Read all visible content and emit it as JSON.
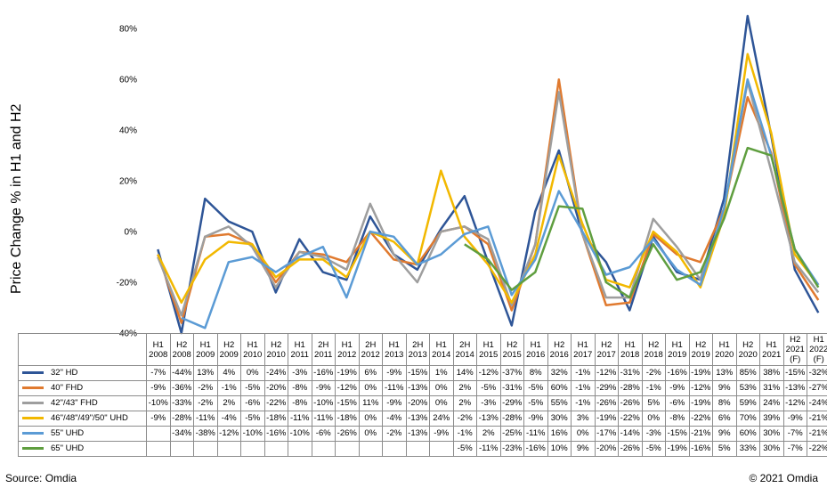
{
  "chart_data": {
    "type": "line",
    "ylabel": "Price Change % in H1 and H2",
    "ylim": [
      -40,
      85
    ],
    "yticks": [
      -40,
      -20,
      0,
      20,
      40,
      60,
      80
    ],
    "ytick_labels": [
      "-40%",
      "-20%",
      "0%",
      "20%",
      "40%",
      "60%",
      "80%"
    ],
    "categories": [
      [
        "H1",
        "2008"
      ],
      [
        "H2",
        "2008"
      ],
      [
        "H1",
        "2009"
      ],
      [
        "H2",
        "2009"
      ],
      [
        "H1",
        "2010"
      ],
      [
        "H2",
        "2010"
      ],
      [
        "H1",
        "2011"
      ],
      [
        "2H",
        "2011"
      ],
      [
        "H1",
        "2012"
      ],
      [
        "2H",
        "2012"
      ],
      [
        "H1",
        "2013"
      ],
      [
        "2H",
        "2013"
      ],
      [
        "H1",
        "2014"
      ],
      [
        "2H",
        "2014"
      ],
      [
        "H1",
        "2015"
      ],
      [
        "H2",
        "2015"
      ],
      [
        "H1",
        "2016"
      ],
      [
        "H2",
        "2016"
      ],
      [
        "H1",
        "2017"
      ],
      [
        "H2",
        "2017"
      ],
      [
        "H1",
        "2018"
      ],
      [
        "H2",
        "2018"
      ],
      [
        "H1",
        "2019"
      ],
      [
        "H2",
        "2019"
      ],
      [
        "H1",
        "2020"
      ],
      [
        "H2",
        "2020"
      ],
      [
        "H1",
        "2021"
      ],
      [
        "H2",
        "2021",
        "(F)"
      ],
      [
        "H1",
        "2022",
        "(F)"
      ]
    ],
    "series": [
      {
        "name": "32\" HD",
        "color": "#2e5597",
        "values": [
          -7,
          -44,
          13,
          4,
          0,
          -24,
          -3,
          -16,
          -19,
          6,
          -9,
          -15,
          1,
          14,
          -12,
          -37,
          8,
          32,
          -1,
          -12,
          -31,
          -2,
          -16,
          -19,
          13,
          85,
          38,
          -15,
          -32
        ],
        "labels": [
          "-7%",
          "-44%",
          "13%",
          "4%",
          "0%",
          "-24%",
          "-3%",
          "-16%",
          "-19%",
          "6%",
          "-9%",
          "-15%",
          "1%",
          "14%",
          "-12%",
          "-37%",
          "8%",
          "32%",
          "-1%",
          "-12%",
          "-31%",
          "-2%",
          "-16%",
          "-19%",
          "13%",
          "85%",
          "38%",
          "-15%",
          "-32%"
        ]
      },
      {
        "name": "40\" FHD",
        "color": "#e07a2f",
        "values": [
          -9,
          -36,
          -2,
          -1,
          -5,
          -20,
          -8,
          -9,
          -12,
          0,
          -11,
          -13,
          0,
          2,
          -5,
          -31,
          -5,
          60,
          -1,
          -29,
          -28,
          -1,
          -9,
          -12,
          9,
          53,
          31,
          -13,
          -27
        ],
        "labels": [
          "-9%",
          "-36%",
          "-2%",
          "-1%",
          "-5%",
          "-20%",
          "-8%",
          "-9%",
          "-12%",
          "0%",
          "-11%",
          "-13%",
          "0%",
          "2%",
          "-5%",
          "-31%",
          "-5%",
          "60%",
          "-1%",
          "-29%",
          "-28%",
          "-1%",
          "-9%",
          "-12%",
          "9%",
          "53%",
          "31%",
          "-13%",
          "-27%"
        ]
      },
      {
        "name": "42\"/43\" FHD",
        "color": "#9e9e9e",
        "values": [
          -10,
          -33,
          -2,
          2,
          -6,
          -22,
          -8,
          -10,
          -15,
          11,
          -9,
          -20,
          0,
          2,
          -3,
          -29,
          -5,
          55,
          -1,
          -26,
          -26,
          5,
          -6,
          -19,
          8,
          59,
          24,
          -12,
          -24
        ],
        "labels": [
          "-10%",
          "-33%",
          "-2%",
          "2%",
          "-6%",
          "-22%",
          "-8%",
          "-10%",
          "-15%",
          "11%",
          "-9%",
          "-20%",
          "0%",
          "2%",
          "-3%",
          "-29%",
          "-5%",
          "55%",
          "-1%",
          "-26%",
          "-26%",
          "5%",
          "-6%",
          "-19%",
          "8%",
          "59%",
          "24%",
          "-12%",
          "-24%"
        ]
      },
      {
        "name": "46\"/48\"/49\"/50\" UHD",
        "color": "#f2b800",
        "values": [
          -9,
          -28,
          -11,
          -4,
          -5,
          -18,
          -11,
          -11,
          -18,
          0,
          -4,
          -13,
          24,
          -2,
          -13,
          -28,
          -9,
          30,
          3,
          -19,
          -22,
          0,
          -8,
          -22,
          6,
          70,
          39,
          -9,
          -21
        ],
        "labels": [
          "-9%",
          "-28%",
          "-11%",
          "-4%",
          "-5%",
          "-18%",
          "-11%",
          "-11%",
          "-18%",
          "0%",
          "-4%",
          "-13%",
          "24%",
          "-2%",
          "-13%",
          "-28%",
          "-9%",
          "30%",
          "3%",
          "-19%",
          "-22%",
          "0%",
          "-8%",
          "-22%",
          "6%",
          "70%",
          "39%",
          "-9%",
          "-21%"
        ]
      },
      {
        "name": "55\" UHD",
        "color": "#5b9bd5",
        "values": [
          null,
          -34,
          -38,
          -12,
          -10,
          -16,
          -10,
          -6,
          -26,
          0,
          -2,
          -13,
          -9,
          -1,
          2,
          -25,
          -11,
          16,
          0,
          -17,
          -14,
          -3,
          -15,
          -21,
          9,
          60,
          30,
          -7,
          -21
        ],
        "labels": [
          "",
          "-34%",
          "-38%",
          "-12%",
          "-10%",
          "-16%",
          "-10%",
          "-6%",
          "-26%",
          "0%",
          "-2%",
          "-13%",
          "-9%",
          "-1%",
          "2%",
          "-25%",
          "-11%",
          "16%",
          "0%",
          "-17%",
          "-14%",
          "-3%",
          "-15%",
          "-21%",
          "9%",
          "60%",
          "30%",
          "-7%",
          "-21%"
        ]
      },
      {
        "name": "65\" UHD",
        "color": "#5f9e3f",
        "values": [
          null,
          null,
          null,
          null,
          null,
          null,
          null,
          null,
          null,
          null,
          null,
          null,
          null,
          -5,
          -11,
          -23,
          -16,
          10,
          9,
          -20,
          -26,
          -5,
          -19,
          -16,
          5,
          33,
          30,
          -7,
          -22
        ],
        "labels": [
          "",
          "",
          "",
          "",
          "",
          "",
          "",
          "",
          "",
          "",
          "",
          "",
          "",
          "-5%",
          "-11%",
          "-23%",
          "-16%",
          "10%",
          "9%",
          "-20%",
          "-26%",
          "-5%",
          "-19%",
          "-16%",
          "5%",
          "33%",
          "30%",
          "-7%",
          "-22%"
        ]
      }
    ]
  },
  "footer": {
    "source": "Source: Omdia",
    "copyright": "© 2021 Omdia"
  }
}
